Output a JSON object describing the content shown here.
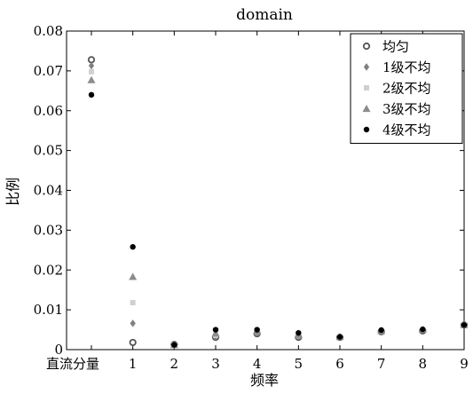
{
  "chart_data": {
    "type": "scatter",
    "title": "domain",
    "xlabel": "频率",
    "ylabel": "比例",
    "categories": [
      "直流分量",
      "1",
      "2",
      "3",
      "4",
      "5",
      "6",
      "7",
      "8",
      "9"
    ],
    "xlim": [
      -0.6,
      9
    ],
    "ylim": [
      0,
      0.08
    ],
    "yticks": [
      "0",
      "0.01",
      "0.02",
      "0.03",
      "0.04",
      "0.05",
      "0.06",
      "0.07",
      "0.08"
    ],
    "grid": false,
    "legend_position": "top-right",
    "series": [
      {
        "name": "均匀",
        "marker": "open-circle",
        "color": "#555555",
        "values": [
          0.0728,
          0.0018,
          0.0013,
          0.0031,
          0.004,
          0.0031,
          0.0031,
          0.0045,
          0.0047,
          0.0062
        ]
      },
      {
        "name": "1级不均",
        "marker": "diamond",
        "color": "#808080",
        "values": [
          0.0713,
          0.0066,
          0.0012,
          0.0033,
          0.0042,
          0.0033,
          0.0031,
          0.0045,
          0.0048,
          0.0062
        ]
      },
      {
        "name": "2级不均",
        "marker": "square",
        "color": "#d0d0d0",
        "values": [
          0.0698,
          0.0118,
          0.0012,
          0.0036,
          0.0044,
          0.0035,
          0.0032,
          0.0046,
          0.0049,
          0.0062
        ]
      },
      {
        "name": "3级不均",
        "marker": "triangle",
        "color": "#8c8c8c",
        "values": [
          0.0677,
          0.0183,
          0.0012,
          0.0041,
          0.0046,
          0.0037,
          0.0032,
          0.0047,
          0.005,
          0.0062
        ]
      },
      {
        "name": "4级不均",
        "marker": "filled-circle",
        "color": "#000000",
        "values": [
          0.064,
          0.0258,
          0.0012,
          0.005,
          0.005,
          0.0042,
          0.0032,
          0.0049,
          0.0051,
          0.0062
        ]
      }
    ]
  }
}
